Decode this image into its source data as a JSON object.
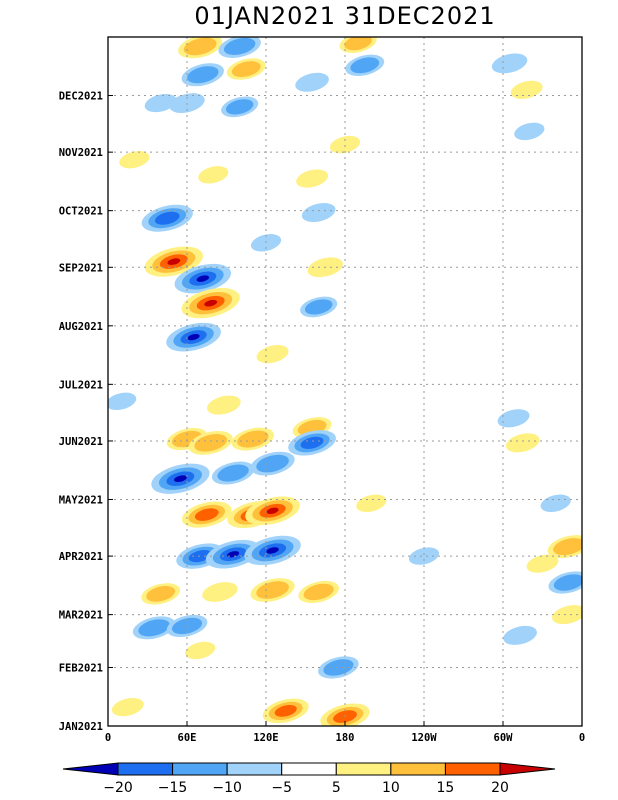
{
  "chart_data": {
    "type": "heatmap",
    "title": "01JAN2021 31DEC2021",
    "xlabel": "",
    "ylabel": "",
    "x_range": [
      0,
      360
    ],
    "x_ticks": [
      {
        "lon": 0,
        "label": "0"
      },
      {
        "lon": 60,
        "label": "60E"
      },
      {
        "lon": 120,
        "label": "120E"
      },
      {
        "lon": 180,
        "label": "180"
      },
      {
        "lon": 240,
        "label": "120W"
      },
      {
        "lon": 300,
        "label": "60W"
      },
      {
        "lon": 360,
        "label": "0"
      }
    ],
    "y_range": [
      "01JAN2021",
      "31DEC2021"
    ],
    "y_ticks": [
      {
        "day": 0,
        "label": "JAN2021"
      },
      {
        "day": 31,
        "label": "FEB2021"
      },
      {
        "day": 59,
        "label": "MAR2021"
      },
      {
        "day": 90,
        "label": "APR2021"
      },
      {
        "day": 120,
        "label": "MAY2021"
      },
      {
        "day": 151,
        "label": "JUN2021"
      },
      {
        "day": 181,
        "label": "JUL2021"
      },
      {
        "day": 212,
        "label": "AUG2021"
      },
      {
        "day": 243,
        "label": "SEP2021"
      },
      {
        "day": 273,
        "label": "OCT2021"
      },
      {
        "day": 304,
        "label": "NOV2021"
      },
      {
        "day": 334,
        "label": "DEC2021"
      }
    ],
    "grid": true,
    "legend": "colorbar-bottom",
    "colorbar": {
      "levels": [
        -20,
        -15,
        -10,
        -5,
        5,
        10,
        15,
        20
      ],
      "labels": [
        "−20",
        "−15",
        "−10",
        "−5",
        "5",
        "10",
        "15",
        "20"
      ],
      "colors": [
        "#0000b4",
        "#1e6ef0",
        "#50a5f5",
        "#a0d2fa",
        "#ffffff",
        "#fff082",
        "#ffc03c",
        "#ff6000",
        "#c80000"
      ]
    },
    "anomalies": [
      {
        "lon": 50,
        "day": 246,
        "value": 22
      },
      {
        "lon": 72,
        "day": 237,
        "value": -21
      },
      {
        "lon": 78,
        "day": 224,
        "value": 22
      },
      {
        "lon": 65,
        "day": 206,
        "value": -20
      },
      {
        "lon": 45,
        "day": 269,
        "value": -18
      },
      {
        "lon": 125,
        "day": 197,
        "value": 7
      },
      {
        "lon": 88,
        "day": 170,
        "value": 8
      },
      {
        "lon": 60,
        "day": 152,
        "value": 12
      },
      {
        "lon": 78,
        "day": 150,
        "value": 14
      },
      {
        "lon": 110,
        "day": 152,
        "value": 13
      },
      {
        "lon": 155,
        "day": 158,
        "value": 11
      },
      {
        "lon": 55,
        "day": 131,
        "value": -22
      },
      {
        "lon": 95,
        "day": 134,
        "value": -13
      },
      {
        "lon": 125,
        "day": 139,
        "value": -14
      },
      {
        "lon": 155,
        "day": 150,
        "value": -16
      },
      {
        "lon": 75,
        "day": 112,
        "value": 17
      },
      {
        "lon": 110,
        "day": 112,
        "value": 18
      },
      {
        "lon": 125,
        "day": 114,
        "value": 20
      },
      {
        "lon": 70,
        "day": 90,
        "value": -16
      },
      {
        "lon": 95,
        "day": 91,
        "value": -20
      },
      {
        "lon": 125,
        "day": 93,
        "value": -21
      },
      {
        "lon": 40,
        "day": 70,
        "value": 11
      },
      {
        "lon": 85,
        "day": 71,
        "value": 9
      },
      {
        "lon": 125,
        "day": 72,
        "value": 14
      },
      {
        "lon": 160,
        "day": 71,
        "value": 12
      },
      {
        "lon": 35,
        "day": 52,
        "value": -13
      },
      {
        "lon": 60,
        "day": 53,
        "value": -12
      },
      {
        "lon": 70,
        "day": 40,
        "value": 6
      },
      {
        "lon": 175,
        "day": 31,
        "value": -12
      },
      {
        "lon": 135,
        "day": 8,
        "value": 15
      },
      {
        "lon": 180,
        "day": 5,
        "value": 17
      },
      {
        "lon": 15,
        "day": 10,
        "value": 7
      },
      {
        "lon": 200,
        "day": 118,
        "value": 6
      },
      {
        "lon": 330,
        "day": 86,
        "value": 7
      },
      {
        "lon": 350,
        "day": 95,
        "value": 13
      },
      {
        "lon": 350,
        "day": 76,
        "value": -12
      },
      {
        "lon": 350,
        "day": 59,
        "value": 8
      },
      {
        "lon": 313,
        "day": 48,
        "value": -8
      },
      {
        "lon": 340,
        "day": 118,
        "value": -6
      },
      {
        "lon": 315,
        "day": 150,
        "value": 8
      },
      {
        "lon": 308,
        "day": 163,
        "value": -7
      },
      {
        "lon": 10,
        "day": 172,
        "value": -6
      },
      {
        "lon": 160,
        "day": 222,
        "value": -10
      },
      {
        "lon": 165,
        "day": 243,
        "value": 9
      },
      {
        "lon": 120,
        "day": 256,
        "value": -6
      },
      {
        "lon": 40,
        "day": 330,
        "value": -7
      },
      {
        "lon": 60,
        "day": 330,
        "value": -9
      },
      {
        "lon": 72,
        "day": 345,
        "value": -13
      },
      {
        "lon": 100,
        "day": 328,
        "value": -10
      },
      {
        "lon": 105,
        "day": 348,
        "value": 11
      },
      {
        "lon": 70,
        "day": 360,
        "value": 14
      },
      {
        "lon": 100,
        "day": 360,
        "value": -13
      },
      {
        "lon": 155,
        "day": 341,
        "value": -8
      },
      {
        "lon": 195,
        "day": 350,
        "value": -11
      },
      {
        "lon": 190,
        "day": 362,
        "value": 10
      },
      {
        "lon": 180,
        "day": 308,
        "value": 6
      },
      {
        "lon": 155,
        "day": 290,
        "value": 7
      },
      {
        "lon": 160,
        "day": 272,
        "value": -8
      },
      {
        "lon": 80,
        "day": 292,
        "value": 6
      },
      {
        "lon": 305,
        "day": 351,
        "value": -9
      },
      {
        "lon": 318,
        "day": 337,
        "value": 7
      },
      {
        "lon": 320,
        "day": 315,
        "value": -6
      },
      {
        "lon": 20,
        "day": 300,
        "value": 6
      },
      {
        "lon": 240,
        "day": 90,
        "value": -6
      }
    ]
  }
}
